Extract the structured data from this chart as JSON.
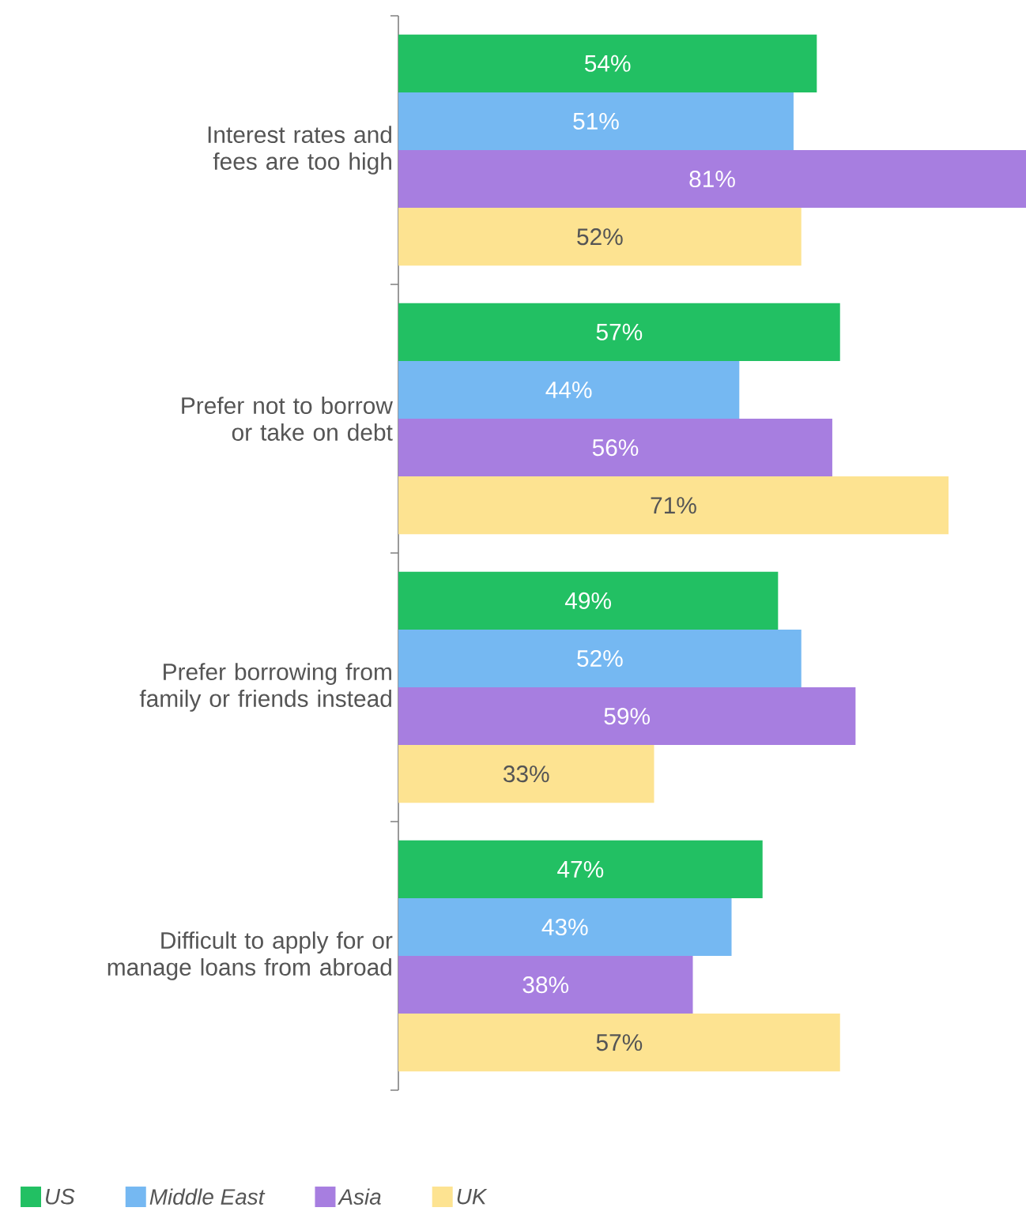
{
  "chart_data": {
    "type": "bar",
    "orientation": "horizontal",
    "categories": [
      "Interest rates and fees are too high",
      "Prefer not to borrow or take on debt",
      "Prefer borrowing from family or friends instead",
      "Difficult to apply for or manage loans from abroad"
    ],
    "series": [
      {
        "name": "US",
        "color": "#22c063",
        "values": [
          54,
          57,
          49,
          47
        ],
        "value_labels": [
          "54%",
          "57%",
          "49%",
          "47%"
        ]
      },
      {
        "name": "Middle East",
        "color": "#75b8f2",
        "values": [
          51,
          44,
          52,
          43
        ],
        "value_labels": [
          "51%",
          "44%",
          "52%",
          "43%"
        ]
      },
      {
        "name": "Asia",
        "color": "#a77ee0",
        "values": [
          81,
          56,
          59,
          38
        ],
        "value_labels": [
          "81%",
          "56%",
          "59%",
          "38%"
        ]
      },
      {
        "name": "UK",
        "color": "#fde391",
        "values": [
          52,
          71,
          33,
          57
        ],
        "value_labels": [
          "52%",
          "71%",
          "33%",
          "57%"
        ]
      }
    ],
    "xlim": [
      0,
      81
    ],
    "tick_labels": "y",
    "legend": "bottom",
    "grid": false
  }
}
